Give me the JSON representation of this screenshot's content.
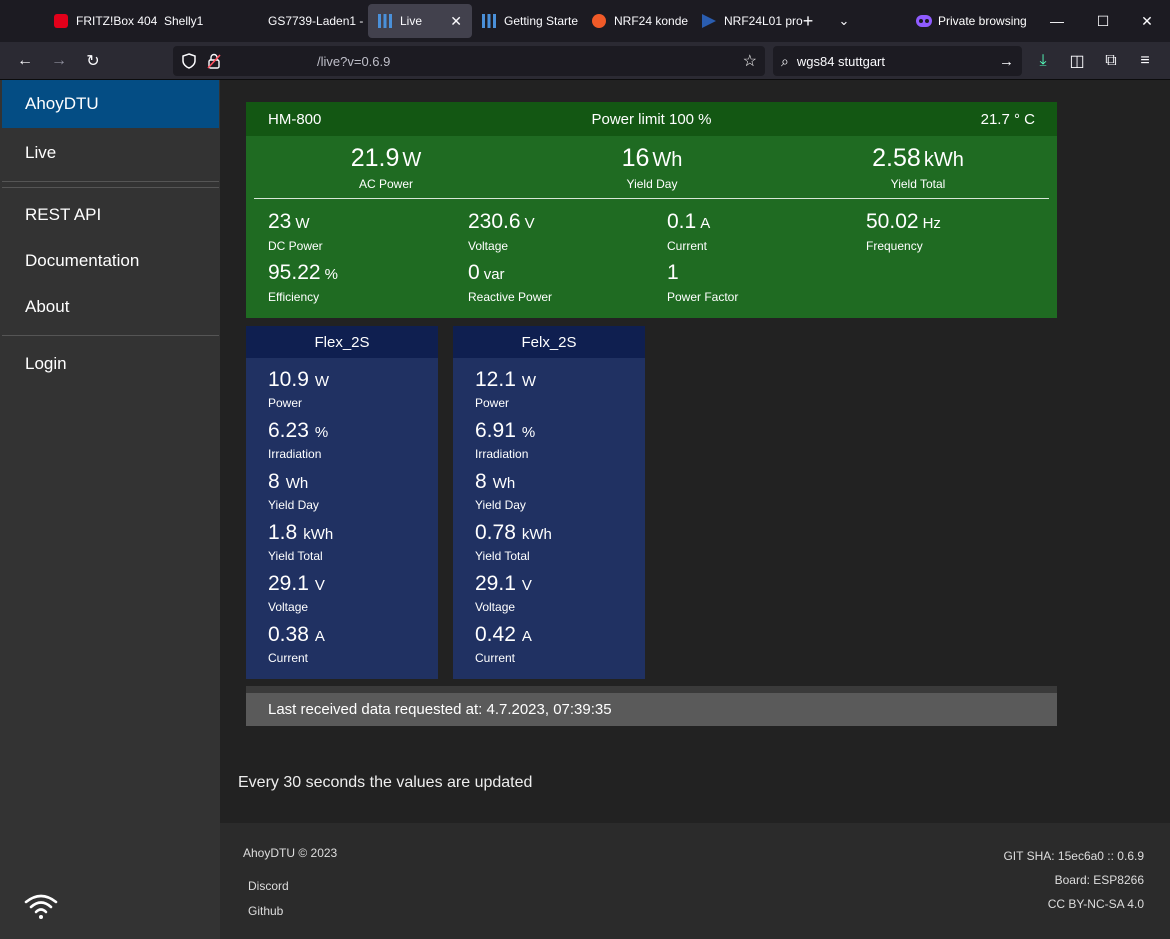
{
  "browser": {
    "tabs": [
      {
        "title": "FRITZ!Box 404",
        "icon_color": "#e2001a"
      },
      {
        "title": "Shelly1",
        "icon_color": ""
      },
      {
        "title": "GS7739-Laden1 -",
        "icon_color": ""
      },
      {
        "title": "Live",
        "icon_color": "#4a90d9",
        "active": true
      },
      {
        "title": "Getting Starte",
        "icon_color": "#4a90d9"
      },
      {
        "title": "NRF24 konde",
        "icon_color": "#f05a28"
      },
      {
        "title": "NRF24L01 pro",
        "icon_color": "#2a5db0"
      }
    ],
    "private_label": "Private browsing",
    "url": "/live?v=0.6.9",
    "search": "wgs84 stuttgart"
  },
  "sidebar": {
    "brand": "AhoyDTU",
    "items": [
      "Live",
      "REST API",
      "Documentation",
      "About",
      "Login"
    ]
  },
  "inverter": {
    "name": "HM-800",
    "power_limit": "Power limit 100 %",
    "temperature": "21.7 ° C",
    "ac_power": {
      "value": "21.9",
      "unit": "W",
      "label": "AC Power"
    },
    "yield_day": {
      "value": "16",
      "unit": "Wh",
      "label": "Yield Day"
    },
    "yield_total": {
      "value": "2.58",
      "unit": "kWh",
      "label": "Yield Total"
    },
    "dc_power": {
      "value": "23",
      "unit": "W",
      "label": "DC Power"
    },
    "voltage": {
      "value": "230.6",
      "unit": "V",
      "label": "Voltage"
    },
    "current": {
      "value": "0.1",
      "unit": "A",
      "label": "Current"
    },
    "frequency": {
      "value": "50.02",
      "unit": "Hz",
      "label": "Frequency"
    },
    "efficiency": {
      "value": "95.22",
      "unit": "%",
      "label": "Efficiency"
    },
    "reactive_power": {
      "value": "0",
      "unit": "var",
      "label": "Reactive Power"
    },
    "power_factor": {
      "value": "1",
      "unit": "",
      "label": "Power Factor"
    }
  },
  "modules": [
    {
      "name": "Flex_2S",
      "power": {
        "value": "10.9",
        "unit": "W",
        "label": "Power"
      },
      "irradiation": {
        "value": "6.23",
        "unit": "%",
        "label": "Irradiation"
      },
      "yield_day": {
        "value": "8",
        "unit": "Wh",
        "label": "Yield Day"
      },
      "yield_total": {
        "value": "1.8",
        "unit": "kWh",
        "label": "Yield Total"
      },
      "voltage": {
        "value": "29.1",
        "unit": "V",
        "label": "Voltage"
      },
      "current": {
        "value": "0.38",
        "unit": "A",
        "label": "Current"
      }
    },
    {
      "name": "Felx_2S",
      "power": {
        "value": "12.1",
        "unit": "W",
        "label": "Power"
      },
      "irradiation": {
        "value": "6.91",
        "unit": "%",
        "label": "Irradiation"
      },
      "yield_day": {
        "value": "8",
        "unit": "Wh",
        "label": "Yield Day"
      },
      "yield_total": {
        "value": "0.78",
        "unit": "kWh",
        "label": "Yield Total"
      },
      "voltage": {
        "value": "29.1",
        "unit": "V",
        "label": "Voltage"
      },
      "current": {
        "value": "0.42",
        "unit": "A",
        "label": "Current"
      }
    }
  ],
  "last_received": "Last received data requested at: 4.7.2023, 07:39:35",
  "update_note": "Every 30 seconds the values are updated",
  "footer": {
    "copyright": "AhoyDTU © 2023",
    "links": [
      "Discord",
      "Github"
    ],
    "git_sha": "GIT SHA: 15ec6a0 :: 0.6.9",
    "board": "Board: ESP8266",
    "license": "CC BY-NC-SA 4.0"
  }
}
